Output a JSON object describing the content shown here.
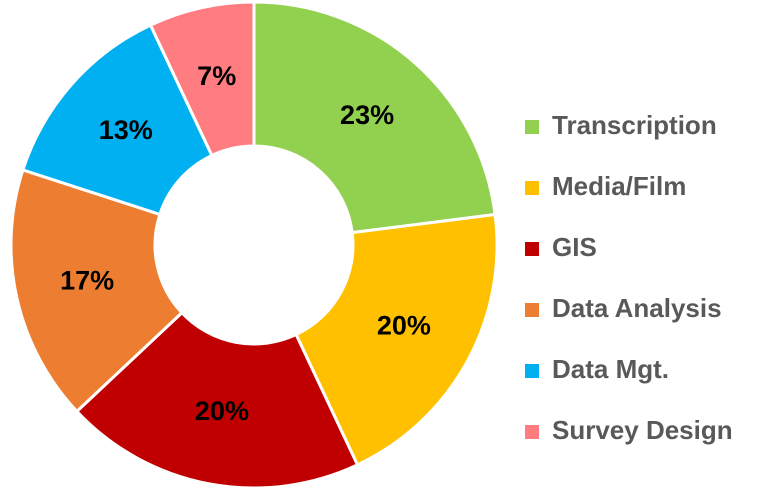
{
  "chart_data": {
    "type": "donut",
    "categories": [
      "Transcription",
      "Media/Film",
      "GIS",
      "Data Analysis",
      "Data Mgt.",
      "Survey Design"
    ],
    "values": [
      23,
      20,
      20,
      17,
      13,
      7
    ],
    "value_labels": [
      "23%",
      "20%",
      "20%",
      "17%",
      "13%",
      "7%"
    ],
    "colors": [
      "#92d050",
      "#ffc000",
      "#c00000",
      "#ed7d31",
      "#00b0f0",
      "#ff7c80"
    ],
    "legend": "right"
  }
}
